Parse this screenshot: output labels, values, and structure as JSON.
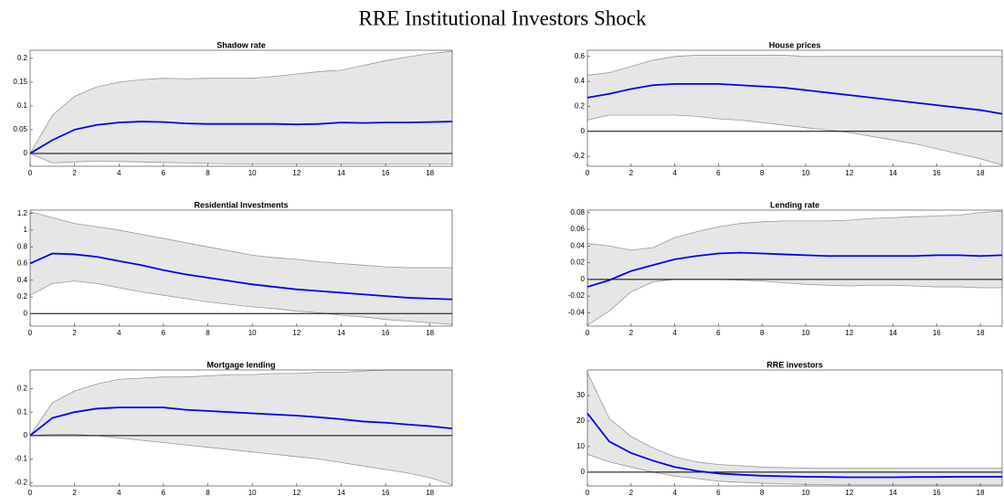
{
  "title": "RRE Institutional Investors Shock",
  "chart_data": [
    {
      "type": "line",
      "title": "Shadow rate",
      "x": [
        0,
        1,
        2,
        3,
        4,
        5,
        6,
        7,
        8,
        9,
        10,
        11,
        12,
        13,
        14,
        15,
        16,
        17,
        18,
        19
      ],
      "values": [
        0,
        0.028,
        0.05,
        0.06,
        0.065,
        0.067,
        0.066,
        0.063,
        0.062,
        0.062,
        0.062,
        0.062,
        0.061,
        0.062,
        0.065,
        0.064,
        0.065,
        0.065,
        0.066,
        0.067
      ],
      "band_upper": [
        0,
        0.08,
        0.12,
        0.14,
        0.15,
        0.155,
        0.158,
        0.157,
        0.158,
        0.158,
        0.158,
        0.162,
        0.167,
        0.172,
        0.175,
        0.185,
        0.195,
        0.203,
        0.21,
        0.215
      ],
      "band_lower": [
        0,
        -0.02,
        -0.018,
        -0.016,
        -0.017,
        -0.018,
        -0.019,
        -0.02,
        -0.021,
        -0.022,
        -0.022,
        -0.022,
        -0.022,
        -0.022,
        -0.022,
        -0.022,
        -0.022,
        -0.022,
        -0.022,
        -0.022
      ],
      "color": "#0000ff",
      "band_color": "#e6e6e6",
      "band_edge_color": "#999999",
      "xlim": [
        0,
        19
      ],
      "ylim": [
        -0.027,
        0.217
      ],
      "xticks": [
        0,
        2,
        4,
        6,
        8,
        10,
        12,
        14,
        16,
        18
      ],
      "yticks": [
        0,
        0.05,
        0.1,
        0.15,
        0.2
      ]
    },
    {
      "type": "line",
      "title": "House prices",
      "x": [
        0,
        1,
        2,
        3,
        4,
        5,
        6,
        7,
        8,
        9,
        10,
        11,
        12,
        13,
        14,
        15,
        16,
        17,
        18,
        19
      ],
      "values": [
        0.27,
        0.3,
        0.34,
        0.37,
        0.38,
        0.38,
        0.38,
        0.37,
        0.36,
        0.35,
        0.33,
        0.31,
        0.29,
        0.27,
        0.25,
        0.23,
        0.21,
        0.19,
        0.17,
        0.14
      ],
      "band_upper": [
        0.45,
        0.47,
        0.52,
        0.57,
        0.6,
        0.61,
        0.61,
        0.61,
        0.61,
        0.61,
        0.6,
        0.6,
        0.6,
        0.6,
        0.6,
        0.6,
        0.6,
        0.6,
        0.6,
        0.6
      ],
      "band_lower": [
        0.09,
        0.13,
        0.13,
        0.13,
        0.13,
        0.12,
        0.1,
        0.09,
        0.07,
        0.05,
        0.03,
        0.01,
        -0.01,
        -0.04,
        -0.07,
        -0.1,
        -0.14,
        -0.18,
        -0.22,
        -0.27
      ],
      "color": "#0000ff",
      "band_color": "#e6e6e6",
      "band_edge_color": "#999999",
      "xlim": [
        0,
        19
      ],
      "ylim": [
        -0.28,
        0.65
      ],
      "xticks": [
        0,
        2,
        4,
        6,
        8,
        10,
        12,
        14,
        16,
        18
      ],
      "yticks": [
        -0.2,
        0,
        0.2,
        0.4,
        0.6
      ]
    },
    {
      "type": "line",
      "title": "Residential Investments",
      "x": [
        0,
        1,
        2,
        3,
        4,
        5,
        6,
        7,
        8,
        9,
        10,
        11,
        12,
        13,
        14,
        15,
        16,
        17,
        18,
        19
      ],
      "values": [
        0.6,
        0.72,
        0.71,
        0.68,
        0.63,
        0.58,
        0.52,
        0.47,
        0.43,
        0.39,
        0.35,
        0.32,
        0.29,
        0.27,
        0.25,
        0.23,
        0.21,
        0.19,
        0.18,
        0.17
      ],
      "band_upper": [
        1.22,
        1.15,
        1.08,
        1.04,
        1.0,
        0.95,
        0.9,
        0.85,
        0.8,
        0.75,
        0.7,
        0.67,
        0.65,
        0.62,
        0.6,
        0.58,
        0.56,
        0.55,
        0.55,
        0.55
      ],
      "band_lower": [
        0.22,
        0.36,
        0.39,
        0.36,
        0.31,
        0.26,
        0.22,
        0.18,
        0.14,
        0.11,
        0.08,
        0.06,
        0.03,
        0.01,
        -0.02,
        -0.04,
        -0.07,
        -0.09,
        -0.11,
        -0.13
      ],
      "color": "#0000ff",
      "band_color": "#e6e6e6",
      "band_edge_color": "#999999",
      "xlim": [
        0,
        19
      ],
      "ylim": [
        -0.15,
        1.24
      ],
      "xticks": [
        0,
        2,
        4,
        6,
        8,
        10,
        12,
        14,
        16,
        18
      ],
      "yticks": [
        0,
        0.2,
        0.4,
        0.6,
        0.8,
        1,
        1.2
      ]
    },
    {
      "type": "line",
      "title": "Lending rate",
      "x": [
        0,
        1,
        2,
        3,
        4,
        5,
        6,
        7,
        8,
        9,
        10,
        11,
        12,
        13,
        14,
        15,
        16,
        17,
        18,
        19
      ],
      "values": [
        -0.009,
        -0.001,
        0.01,
        0.017,
        0.024,
        0.028,
        0.031,
        0.032,
        0.031,
        0.03,
        0.029,
        0.028,
        0.028,
        0.028,
        0.028,
        0.028,
        0.029,
        0.029,
        0.028,
        0.029
      ],
      "band_upper": [
        0.043,
        0.04,
        0.035,
        0.038,
        0.05,
        0.057,
        0.063,
        0.067,
        0.069,
        0.07,
        0.07,
        0.07,
        0.071,
        0.073,
        0.074,
        0.075,
        0.076,
        0.077,
        0.08,
        0.082
      ],
      "band_lower": [
        -0.055,
        -0.038,
        -0.015,
        -0.003,
        0,
        0,
        0,
        -0.001,
        -0.002,
        -0.004,
        -0.006,
        -0.007,
        -0.008,
        -0.007,
        -0.007,
        -0.008,
        -0.009,
        -0.009,
        -0.01,
        -0.01
      ],
      "color": "#0000ff",
      "band_color": "#e6e6e6",
      "band_edge_color": "#999999",
      "xlim": [
        0,
        19
      ],
      "ylim": [
        -0.056,
        0.083
      ],
      "xticks": [
        0,
        2,
        4,
        6,
        8,
        10,
        12,
        14,
        16,
        18
      ],
      "yticks": [
        -0.04,
        -0.02,
        0,
        0.02,
        0.04,
        0.06,
        0.08
      ]
    },
    {
      "type": "line",
      "title": "Mortgage lending",
      "x": [
        0,
        1,
        2,
        3,
        4,
        5,
        6,
        7,
        8,
        9,
        10,
        11,
        12,
        13,
        14,
        15,
        16,
        17,
        18,
        19
      ],
      "values": [
        0,
        0.075,
        0.1,
        0.115,
        0.12,
        0.12,
        0.12,
        0.11,
        0.105,
        0.1,
        0.095,
        0.09,
        0.085,
        0.078,
        0.07,
        0.06,
        0.055,
        0.047,
        0.04,
        0.03
      ],
      "band_upper": [
        0,
        0.14,
        0.19,
        0.22,
        0.24,
        0.245,
        0.25,
        0.25,
        0.255,
        0.26,
        0.26,
        0.265,
        0.265,
        0.27,
        0.27,
        0.275,
        0.28,
        0.28,
        0.28,
        0.28
      ],
      "band_lower": [
        0,
        0.005,
        0.005,
        0,
        -0.01,
        -0.02,
        -0.03,
        -0.04,
        -0.05,
        -0.06,
        -0.07,
        -0.08,
        -0.09,
        -0.1,
        -0.115,
        -0.13,
        -0.145,
        -0.16,
        -0.18,
        -0.21
      ],
      "color": "#0000ff",
      "band_color": "#e6e6e6",
      "band_edge_color": "#999999",
      "xlim": [
        0,
        19
      ],
      "ylim": [
        -0.215,
        0.28
      ],
      "xticks": [
        0,
        2,
        4,
        6,
        8,
        10,
        12,
        14,
        16,
        18
      ],
      "yticks": [
        -0.2,
        -0.1,
        0,
        0.1,
        0.2
      ]
    },
    {
      "type": "line",
      "title": "RRE investors",
      "x": [
        0,
        1,
        2,
        3,
        4,
        5,
        6,
        7,
        8,
        9,
        10,
        11,
        12,
        13,
        14,
        15,
        16,
        17,
        18,
        19
      ],
      "values": [
        23,
        12,
        7.5,
        4.5,
        2,
        0.5,
        -0.5,
        -1,
        -1.4,
        -1.6,
        -1.8,
        -1.9,
        -2,
        -2,
        -2,
        -1.9,
        -1.9,
        -1.8,
        -1.8,
        -1.8
      ],
      "band_upper": [
        39,
        21,
        14,
        9.5,
        6,
        4,
        3,
        2.5,
        2,
        1.8,
        1.6,
        1.5,
        1.5,
        1.5,
        1.5,
        1.5,
        1.5,
        1.5,
        1.5,
        1.5
      ],
      "band_lower": [
        7,
        4,
        2,
        0,
        -1.5,
        -2.5,
        -3.5,
        -4,
        -4.3,
        -4.6,
        -4.8,
        -4.9,
        -5,
        -5,
        -5,
        -5,
        -5,
        -5,
        -5,
        -5
      ],
      "color": "#0000ff",
      "band_color": "#e6e6e6",
      "band_edge_color": "#999999",
      "xlim": [
        0,
        19
      ],
      "ylim": [
        -5.4,
        40
      ],
      "xticks": [
        0,
        2,
        4,
        6,
        8,
        10,
        12,
        14,
        16,
        18
      ],
      "yticks": [
        0,
        10,
        20,
        30
      ]
    }
  ]
}
